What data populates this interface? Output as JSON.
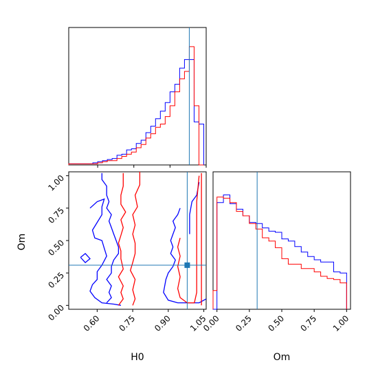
{
  "chart_data": {
    "type": "corner",
    "parameters": [
      "H0",
      "Om"
    ],
    "truth": {
      "H0": 0.98,
      "Om": 0.31
    },
    "truth_color": "#1f77b4",
    "series": [
      {
        "color": "#0000ff"
      },
      {
        "color": "#ff0000"
      }
    ],
    "panels": [
      {
        "id": "hist-H0",
        "type": "histogram",
        "x": "H0",
        "xlim": [
          0.48,
          1.05
        ],
        "bins": [
          0.48,
          0.5,
          0.52,
          0.54,
          0.56,
          0.58,
          0.6,
          0.62,
          0.64,
          0.66,
          0.68,
          0.7,
          0.72,
          0.74,
          0.76,
          0.78,
          0.8,
          0.82,
          0.84,
          0.86,
          0.88,
          0.9,
          0.92,
          0.94,
          0.96,
          0.98,
          1.0,
          1.02,
          1.04
        ],
        "counts": {
          "blue": [
            1,
            1,
            1,
            1,
            1,
            2,
            3,
            4,
            5,
            6,
            9,
            10,
            14,
            15,
            20,
            23,
            30,
            36,
            43,
            50,
            58,
            68,
            75,
            90,
            98,
            98,
            40,
            38
          ],
          "red": [
            1,
            1,
            1,
            1,
            1,
            1,
            2,
            3,
            4,
            4,
            6,
            8,
            10,
            12,
            16,
            19,
            25,
            29,
            35,
            38,
            45,
            55,
            68,
            80,
            87,
            110,
            55,
            0
          ]
        },
        "xticks": [
          0.6,
          0.75,
          0.9,
          1.05
        ]
      },
      {
        "id": "hist-Om",
        "type": "histogram",
        "x": "Om",
        "xlim": [
          -0.03,
          1.03
        ],
        "bins": [
          -0.03,
          0.0,
          0.05,
          0.1,
          0.15,
          0.2,
          0.25,
          0.3,
          0.35,
          0.4,
          0.45,
          0.5,
          0.55,
          0.6,
          0.65,
          0.7,
          0.75,
          0.8,
          0.85,
          0.9,
          0.95,
          1.0
        ],
        "counts": {
          "blue": [
            0,
            97,
            104,
            96,
            91,
            85,
            79,
            78,
            74,
            71,
            70,
            64,
            62,
            57,
            52,
            48,
            45,
            43,
            43,
            34,
            33
          ],
          "red": [
            17,
            102,
            101,
            97,
            89,
            85,
            78,
            73,
            65,
            62,
            56,
            46,
            41,
            41,
            37,
            37,
            34,
            30,
            28,
            27,
            24
          ]
        },
        "xticks": [
          0.0,
          0.25,
          0.5,
          0.75,
          1.0
        ],
        "xticklabels": [
          "0.00",
          "0.25",
          "0.50",
          "0.75",
          "1.00"
        ],
        "xlabel": "Om"
      },
      {
        "id": "contour-H0-Om",
        "type": "contour",
        "x": "H0",
        "y": "Om",
        "xlim": [
          0.48,
          1.06
        ],
        "ylim": [
          -0.03,
          1.03
        ],
        "xticks": [
          0.6,
          0.75,
          0.9,
          1.05
        ],
        "xticklabels": [
          "0.60",
          "0.75",
          "0.90",
          "1.05"
        ],
        "yticks": [
          0.0,
          0.25,
          0.5,
          0.75,
          1.0
        ],
        "yticklabels": [
          "0.00",
          "0.25",
          "0.50",
          "0.75",
          "1.00"
        ],
        "xlabel": "H0",
        "ylabel": "Om",
        "contours": [
          {
            "series": "blue",
            "points": [
              [
                0.62,
                1.02
              ],
              [
                0.62,
                0.97
              ],
              [
                0.64,
                0.92
              ],
              [
                0.64,
                0.85
              ],
              [
                0.65,
                0.8
              ],
              [
                0.64,
                0.75
              ],
              [
                0.66,
                0.7
              ],
              [
                0.65,
                0.65
              ],
              [
                0.66,
                0.6
              ],
              [
                0.67,
                0.55
              ],
              [
                0.68,
                0.5
              ],
              [
                0.69,
                0.45
              ],
              [
                0.69,
                0.4
              ],
              [
                0.67,
                0.35
              ],
              [
                0.66,
                0.3
              ],
              [
                0.66,
                0.25
              ],
              [
                0.64,
                0.2
              ],
              [
                0.66,
                0.15
              ],
              [
                0.65,
                0.1
              ],
              [
                0.66,
                0.06
              ],
              [
                0.64,
                0.02
              ]
            ]
          },
          {
            "series": "blue",
            "points": [
              [
                0.57,
                0.75
              ],
              [
                0.6,
                0.8
              ],
              [
                0.63,
                0.82
              ],
              [
                0.62,
                0.76
              ],
              [
                0.62,
                0.7
              ],
              [
                0.6,
                0.64
              ],
              [
                0.58,
                0.58
              ],
              [
                0.59,
                0.52
              ],
              [
                0.62,
                0.5
              ],
              [
                0.63,
                0.44
              ],
              [
                0.64,
                0.38
              ],
              [
                0.62,
                0.31
              ],
              [
                0.6,
                0.26
              ],
              [
                0.6,
                0.2
              ],
              [
                0.58,
                0.16
              ],
              [
                0.57,
                0.11
              ],
              [
                0.59,
                0.06
              ],
              [
                0.62,
                0.02
              ],
              [
                0.67,
                0.01
              ],
              [
                0.7,
                0.0
              ]
            ]
          },
          {
            "series": "blue",
            "points": [
              [
                0.53,
                0.37
              ],
              [
                0.55,
                0.4
              ],
              [
                0.57,
                0.36
              ],
              [
                0.55,
                0.33
              ],
              [
                0.53,
                0.37
              ]
            ]
          },
          {
            "series": "blue",
            "points": [
              [
                0.95,
                0.75
              ],
              [
                0.94,
                0.7
              ],
              [
                0.92,
                0.65
              ],
              [
                0.93,
                0.6
              ],
              [
                0.92,
                0.55
              ],
              [
                0.91,
                0.5
              ],
              [
                0.92,
                0.45
              ],
              [
                0.91,
                0.4
              ],
              [
                0.93,
                0.35
              ],
              [
                0.92,
                0.3
              ],
              [
                0.9,
                0.25
              ],
              [
                0.89,
                0.2
              ],
              [
                0.88,
                0.1
              ],
              [
                0.9,
                0.04
              ],
              [
                0.94,
                0.02
              ],
              [
                0.99,
                0.02
              ],
              [
                1.03,
                0.02
              ],
              [
                1.06,
                0.05
              ]
            ]
          },
          {
            "series": "blue",
            "points": [
              [
                1.03,
                0.95
              ],
              [
                1.02,
                0.85
              ],
              [
                1.0,
                0.8
              ],
              [
                0.99,
                0.7
              ],
              [
                0.99,
                0.6
              ],
              [
                0.99,
                0.55
              ]
            ]
          },
          {
            "series": "red",
            "points": [
              [
                0.71,
                1.02
              ],
              [
                0.71,
                0.92
              ],
              [
                0.7,
                0.85
              ],
              [
                0.7,
                0.78
              ],
              [
                0.72,
                0.72
              ],
              [
                0.7,
                0.66
              ],
              [
                0.71,
                0.6
              ],
              [
                0.7,
                0.54
              ],
              [
                0.69,
                0.48
              ],
              [
                0.7,
                0.42
              ],
              [
                0.7,
                0.36
              ],
              [
                0.71,
                0.28
              ],
              [
                0.69,
                0.22
              ],
              [
                0.71,
                0.15
              ],
              [
                0.7,
                0.1
              ],
              [
                0.71,
                0.05
              ],
              [
                0.69,
                0.0
              ]
            ]
          },
          {
            "series": "red",
            "points": [
              [
                0.78,
                1.03
              ],
              [
                0.78,
                0.93
              ],
              [
                0.76,
                0.85
              ],
              [
                0.77,
                0.76
              ],
              [
                0.75,
                0.7
              ],
              [
                0.76,
                0.62
              ],
              [
                0.75,
                0.55
              ],
              [
                0.76,
                0.48
              ],
              [
                0.76,
                0.4
              ],
              [
                0.75,
                0.33
              ],
              [
                0.74,
                0.27
              ],
              [
                0.76,
                0.2
              ],
              [
                0.75,
                0.12
              ],
              [
                0.76,
                0.05
              ],
              [
                0.75,
                0.0
              ]
            ]
          },
          {
            "series": "red",
            "points": [
              [
                0.95,
                0.52
              ],
              [
                0.94,
                0.45
              ],
              [
                0.95,
                0.38
              ],
              [
                0.94,
                0.3
              ],
              [
                0.95,
                0.22
              ],
              [
                0.94,
                0.13
              ],
              [
                0.95,
                0.06
              ],
              [
                0.98,
                0.02
              ],
              [
                1.01,
                0.02
              ],
              [
                1.02,
                0.1
              ],
              [
                1.02,
                0.25
              ],
              [
                1.02,
                0.45
              ],
              [
                1.02,
                0.6
              ],
              [
                1.02,
                0.8
              ],
              [
                1.03,
                1.0
              ]
            ]
          },
          {
            "series": "red",
            "points": [
              [
                1.04,
                1.02
              ],
              [
                1.04,
                0.8
              ],
              [
                1.04,
                0.6
              ],
              [
                1.04,
                0.35
              ],
              [
                1.04,
                0.1
              ],
              [
                1.04,
                0.0
              ]
            ]
          }
        ]
      }
    ]
  }
}
